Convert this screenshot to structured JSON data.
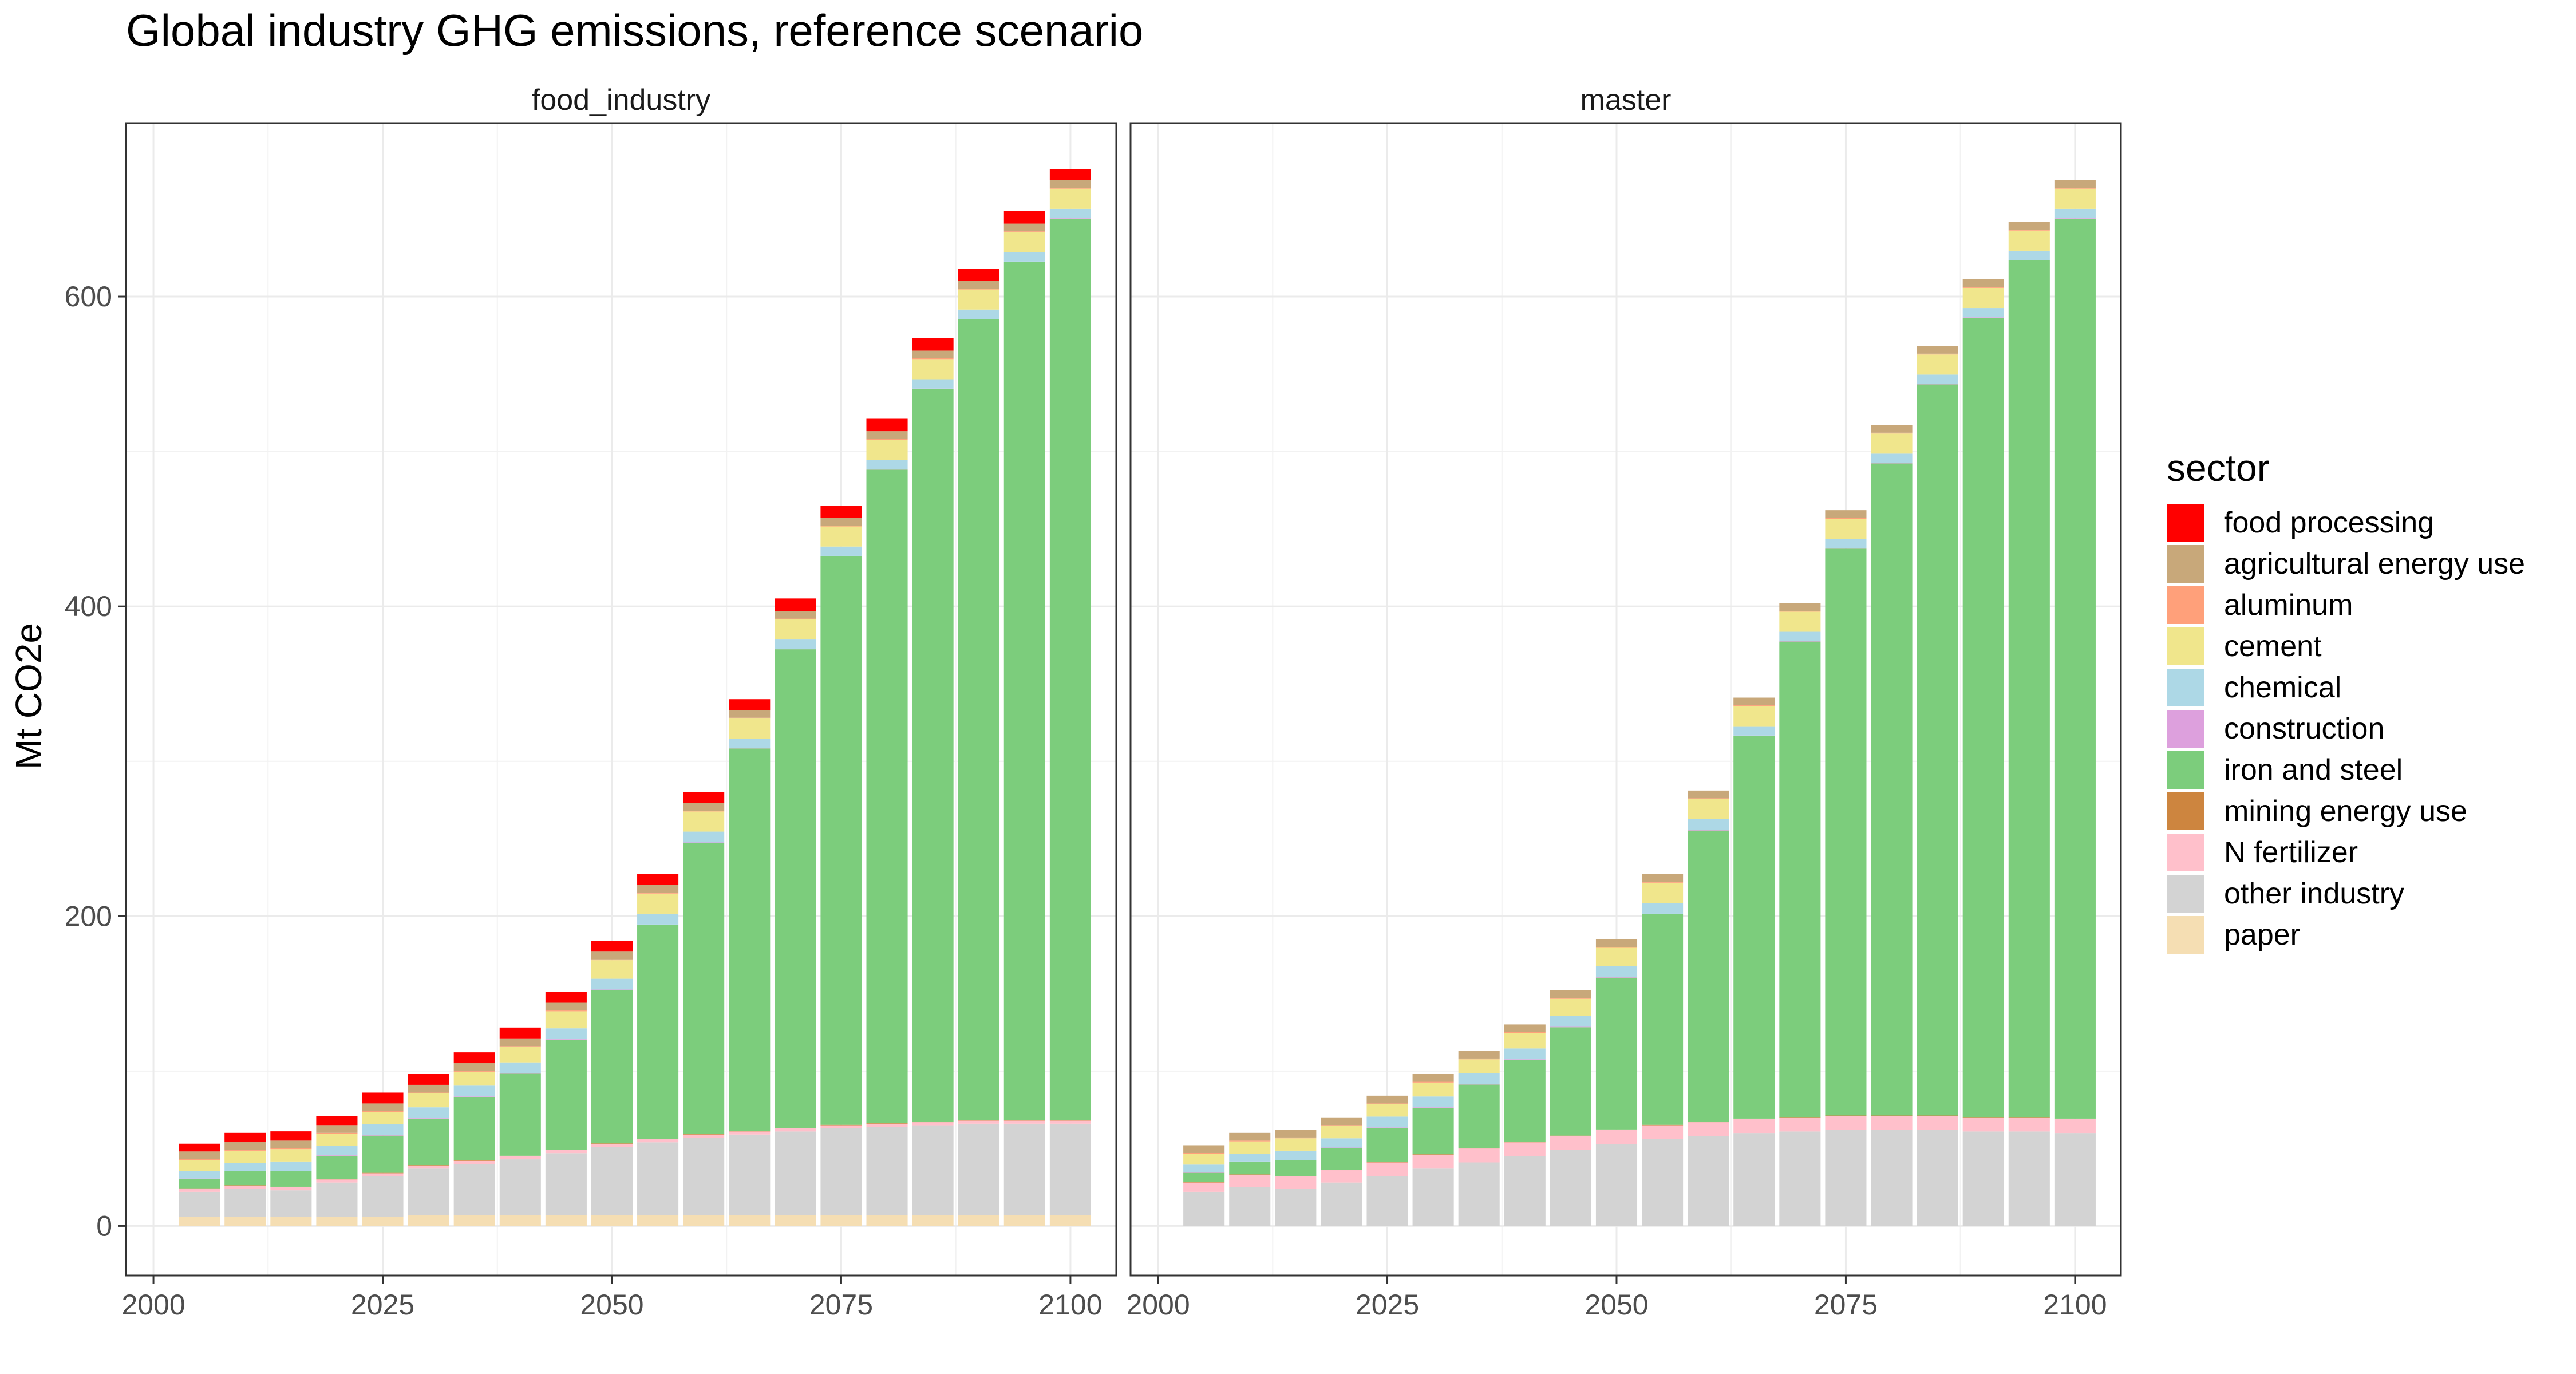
{
  "chart_data": {
    "type": "bar",
    "stacked": true,
    "title": "Global industry GHG emissions, reference scenario",
    "xlabel": "",
    "ylabel": "Mt CO2e",
    "ylim": [
      -32,
      712
    ],
    "xlim": [
      1997,
      2105
    ],
    "grid": true,
    "legend_position": "right",
    "legend_title": "sector",
    "x": [
      2005,
      2010,
      2015,
      2020,
      2025,
      2030,
      2035,
      2040,
      2045,
      2050,
      2055,
      2060,
      2065,
      2070,
      2075,
      2080,
      2085,
      2090,
      2095,
      2100
    ],
    "x_ticks": [
      "2000",
      "2025",
      "2050",
      "2075",
      "2100"
    ],
    "y_ticks": [
      "0",
      "200",
      "400",
      "600"
    ],
    "x_tick_values": [
      2000,
      2025,
      2050,
      2075,
      2100
    ],
    "y_tick_values": [
      0,
      200,
      400,
      600
    ],
    "sectors": [
      {
        "name": "food processing",
        "color": "#ff0000"
      },
      {
        "name": "agricultural energy use",
        "color": "#c8a87a"
      },
      {
        "name": "aluminum",
        "color": "#ffa07a"
      },
      {
        "name": "cement",
        "color": "#f0e68c"
      },
      {
        "name": "chemical",
        "color": "#add8e6"
      },
      {
        "name": "construction",
        "color": "#dda0dd"
      },
      {
        "name": "iron and steel",
        "color": "#7ccd7c"
      },
      {
        "name": "mining energy use",
        "color": "#cd853f"
      },
      {
        "name": "N fertilizer",
        "color": "#ffc0cb"
      },
      {
        "name": "other industry",
        "color": "#d3d3d3"
      },
      {
        "name": "paper",
        "color": "#f5deb3"
      }
    ],
    "panels": [
      {
        "name": "food_industry",
        "series": [
          {
            "name": "paper",
            "values": [
              6,
              6,
              6,
              6,
              6,
              7,
              7,
              7,
              7,
              7,
              7,
              7,
              7,
              7,
              7,
              7,
              7,
              7,
              7,
              7
            ]
          },
          {
            "name": "other industry",
            "values": [
              16,
              18,
              17,
              22,
              26,
              30,
              33,
              36,
              40,
              44,
              47,
              50,
              52,
              54,
              56,
              57,
              58,
              59,
              59,
              59
            ]
          },
          {
            "name": "N fertilizer",
            "values": [
              2,
              2,
              2,
              2,
              2,
              2,
              2,
              2,
              2,
              2,
              2,
              2,
              2,
              2,
              2,
              2,
              2,
              2,
              2,
              2
            ]
          },
          {
            "name": "mining energy use",
            "values": [
              0.3,
              0.3,
              0.3,
              0.3,
              0.3,
              0.3,
              0.3,
              0.3,
              0.3,
              0.3,
              0.3,
              0.3,
              0.3,
              0.3,
              0.3,
              0.3,
              0.3,
              0.3,
              0.3,
              0.3
            ]
          },
          {
            "name": "iron and steel",
            "values": [
              6,
              9,
              10,
              15,
              24,
              30,
              41,
              53,
              71,
              99,
              138,
              188,
              247,
              309,
              367,
              422,
              473,
              517,
              554,
              582
            ]
          },
          {
            "name": "construction",
            "values": [
              0.3,
              0.3,
              0.3,
              0.3,
              0.3,
              0.3,
              0.3,
              0.3,
              0.3,
              0.3,
              0.3,
              0.3,
              0.3,
              0.3,
              0.3,
              0.3,
              0.3,
              0.3,
              0.3,
              0.3
            ]
          },
          {
            "name": "chemical",
            "values": [
              5,
              5,
              6,
              6,
              7,
              7,
              7,
              7,
              7,
              7,
              7,
              7,
              6,
              6,
              6,
              6,
              6,
              6,
              6,
              6
            ]
          },
          {
            "name": "cement",
            "values": [
              7,
              8,
              8,
              8,
              8,
              9,
              9,
              10,
              11,
              12,
              13,
              13,
              13,
              13,
              13,
              13,
              13,
              13,
              13,
              13
            ]
          },
          {
            "name": "aluminum",
            "values": [
              0.5,
              0.5,
              0.5,
              0.5,
              0.5,
              0.5,
              0.5,
              0.5,
              0.5,
              0.5,
              0.5,
              0.5,
              0.5,
              0.5,
              0.5,
              0.5,
              0.5,
              0.5,
              0.5,
              0.5
            ]
          },
          {
            "name": "agricultural energy use",
            "values": [
              5,
              5,
              5,
              5,
              5,
              5,
              5,
              5,
              5,
              5,
              5,
              5,
              5,
              5,
              5,
              5,
              5,
              5,
              5,
              5
            ]
          },
          {
            "name": "food processing",
            "values": [
              5,
              6,
              6,
              6,
              7,
              7,
              7,
              7,
              7,
              7,
              7,
              7,
              7,
              8,
              8,
              8,
              8,
              8,
              8,
              7
            ]
          }
        ]
      },
      {
        "name": "master",
        "series": [
          {
            "name": "paper",
            "values": [
              0,
              0,
              0,
              0,
              0,
              0,
              0,
              0,
              0,
              0,
              0,
              0,
              0,
              0,
              0,
              0,
              0,
              0,
              0,
              0
            ]
          },
          {
            "name": "other industry",
            "values": [
              22,
              25,
              24,
              28,
              32,
              37,
              41,
              45,
              49,
              53,
              56,
              58,
              60,
              61,
              62,
              62,
              62,
              61,
              61,
              60
            ]
          },
          {
            "name": "N fertilizer",
            "values": [
              6,
              8,
              8,
              8,
              9,
              9,
              9,
              9,
              9,
              9,
              9,
              9,
              9,
              9,
              9,
              9,
              9,
              9,
              9,
              9
            ]
          },
          {
            "name": "mining energy use",
            "values": [
              0.3,
              0.3,
              0.3,
              0.3,
              0.3,
              0.3,
              0.3,
              0.3,
              0.3,
              0.3,
              0.3,
              0.3,
              0.3,
              0.3,
              0.3,
              0.3,
              0.3,
              0.3,
              0.3,
              0.3
            ]
          },
          {
            "name": "iron and steel",
            "values": [
              6,
              8,
              10,
              14,
              22,
              30,
              41,
              53,
              70,
              98,
              136,
              188,
              247,
              307,
              366,
              421,
              472,
              516,
              553,
              581
            ]
          },
          {
            "name": "construction",
            "values": [
              0.3,
              0.3,
              0.3,
              0.3,
              0.3,
              0.3,
              0.3,
              0.3,
              0.3,
              0.3,
              0.3,
              0.3,
              0.3,
              0.3,
              0.3,
              0.3,
              0.3,
              0.3,
              0.3,
              0.3
            ]
          },
          {
            "name": "chemical",
            "values": [
              5,
              5,
              6,
              6,
              7,
              7,
              7,
              7,
              7,
              7,
              7,
              7,
              6,
              6,
              6,
              6,
              6,
              6,
              6,
              6
            ]
          },
          {
            "name": "cement",
            "values": [
              7,
              8,
              8,
              8,
              8,
              9,
              9,
              10,
              11,
              12,
              13,
              13,
              13,
              13,
              13,
              13,
              13,
              13,
              13,
              13
            ]
          },
          {
            "name": "aluminum",
            "values": [
              0.5,
              0.5,
              0.5,
              0.5,
              0.5,
              0.5,
              0.5,
              0.5,
              0.5,
              0.5,
              0.5,
              0.5,
              0.5,
              0.5,
              0.5,
              0.5,
              0.5,
              0.5,
              0.5,
              0.5
            ]
          },
          {
            "name": "agricultural energy use",
            "values": [
              5,
              5,
              5,
              5,
              5,
              5,
              5,
              5,
              5,
              5,
              5,
              5,
              5,
              5,
              5,
              5,
              5,
              5,
              5,
              5
            ]
          },
          {
            "name": "food processing",
            "values": [
              0,
              0,
              0,
              0,
              0,
              0,
              0,
              0,
              0,
              0,
              0,
              0,
              0,
              0,
              0,
              0,
              0,
              0,
              0,
              0
            ]
          }
        ]
      }
    ]
  }
}
